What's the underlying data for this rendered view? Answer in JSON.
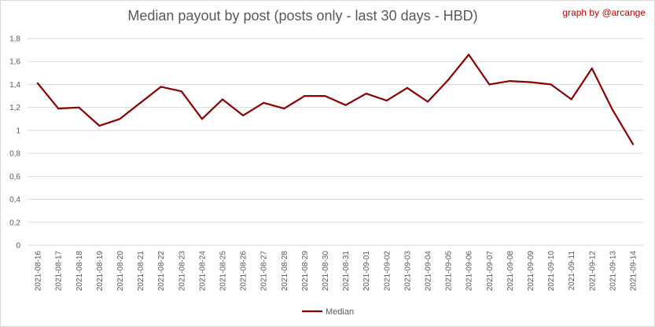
{
  "chart_data": {
    "type": "line",
    "title": "Median payout by post (posts only - last 30 days - HBD)",
    "credit": "graph by @arcange",
    "ylim": [
      0,
      1.8
    ],
    "yticks": [
      "0",
      "0,2",
      "0,4",
      "0,6",
      "0,8",
      "1",
      "1,2",
      "1,4",
      "1,6",
      "1,8"
    ],
    "grid": true,
    "legend_position": "bottom",
    "colors": {
      "line": "#8b0000",
      "grid": "#d9d9d9",
      "axis_text": "#595959"
    },
    "categories": [
      "2021-08-16",
      "2021-08-17",
      "2021-08-18",
      "2021-08-19",
      "2021-08-20",
      "2021-08-21",
      "2021-08-22",
      "2021-08-23",
      "2021-08-24",
      "2021-08-25",
      "2021-08-26",
      "2021-08-27",
      "2021-08-28",
      "2021-08-29",
      "2021-08-30",
      "2021-08-31",
      "2021-09-01",
      "2021-09-02",
      "2021-09-03",
      "2021-09-04",
      "2021-09-05",
      "2021-09-06",
      "2021-09-07",
      "2021-09-08",
      "2021-09-09",
      "2021-09-10",
      "2021-09-11",
      "2021-09-12",
      "2021-09-13",
      "2021-09-14"
    ],
    "series": [
      {
        "name": "Median",
        "values": [
          1.41,
          1.19,
          1.2,
          1.04,
          1.1,
          1.24,
          1.38,
          1.34,
          1.1,
          1.27,
          1.13,
          1.24,
          1.19,
          1.3,
          1.3,
          1.22,
          1.32,
          1.26,
          1.37,
          1.25,
          1.44,
          1.66,
          1.4,
          1.43,
          1.42,
          1.4,
          1.27,
          1.54,
          1.18,
          0.88
        ]
      }
    ]
  }
}
